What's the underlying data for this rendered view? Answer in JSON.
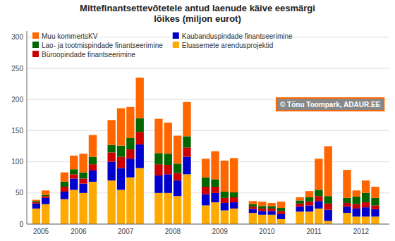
{
  "chart_data": {
    "type": "bar",
    "stacked": true,
    "title": "Mittefinantsettevõtetele antud laenude käive eesmärgi\nlõikes (miljon eurot)",
    "categories": [
      "2005",
      null,
      "2006",
      null,
      null,
      null,
      "2007",
      null,
      null,
      null,
      "2008",
      null,
      null,
      null,
      "2009",
      null,
      null,
      null,
      "2010",
      null,
      null,
      null,
      "2011",
      null,
      null,
      null,
      "2012",
      null,
      null,
      null
    ],
    "series": [
      {
        "name": "Muu kommertsKV",
        "color": "#FF6600",
        "values": [
          2,
          7,
          15,
          22,
          30,
          35,
          40,
          60,
          50,
          65,
          55,
          50,
          45,
          55,
          30,
          45,
          50,
          55,
          5,
          7,
          5,
          10,
          5,
          10,
          50,
          80,
          45,
          10,
          20,
          18
        ]
      },
      {
        "name": "Lao- ja tootmispindade finantseerimine",
        "color": "#006600",
        "values": [
          2,
          2,
          8,
          8,
          10,
          12,
          12,
          18,
          18,
          22,
          18,
          18,
          15,
          18,
          15,
          12,
          10,
          8,
          4,
          4,
          4,
          5,
          5,
          7,
          10,
          12,
          8,
          12,
          15,
          12
        ]
      },
      {
        "name": "Büroopindade finantseerimine",
        "color": "#CC0000",
        "values": [
          2,
          3,
          8,
          7,
          8,
          10,
          15,
          18,
          15,
          20,
          18,
          15,
          12,
          15,
          12,
          10,
          8,
          8,
          4,
          4,
          4,
          5,
          5,
          6,
          8,
          10,
          6,
          7,
          8,
          6
        ]
      },
      {
        "name": "Kaubanduspindade finantseerimine",
        "color": "#0000CC",
        "values": [
          8,
          10,
          12,
          18,
          15,
          18,
          30,
          35,
          30,
          38,
          28,
          30,
          25,
          28,
          18,
          15,
          12,
          10,
          6,
          6,
          6,
          8,
          8,
          10,
          12,
          18,
          10,
          13,
          15,
          12
        ]
      },
      {
        "name": "Eluasemete arendusprojektid",
        "color": "#FFAA00",
        "values": [
          25,
          32,
          40,
          55,
          50,
          68,
          70,
          55,
          75,
          90,
          50,
          50,
          45,
          80,
          30,
          35,
          22,
          25,
          18,
          15,
          15,
          8,
          20,
          20,
          25,
          5,
          18,
          12,
          12,
          12
        ]
      }
    ],
    "ylim": [
      0,
      310
    ],
    "yticks": [
      0,
      50,
      100,
      150,
      200,
      250,
      300
    ],
    "grid": true,
    "legend": "upper left",
    "annotations": [
      "© Tõnu Toompark, ADAUR.EE"
    ]
  }
}
